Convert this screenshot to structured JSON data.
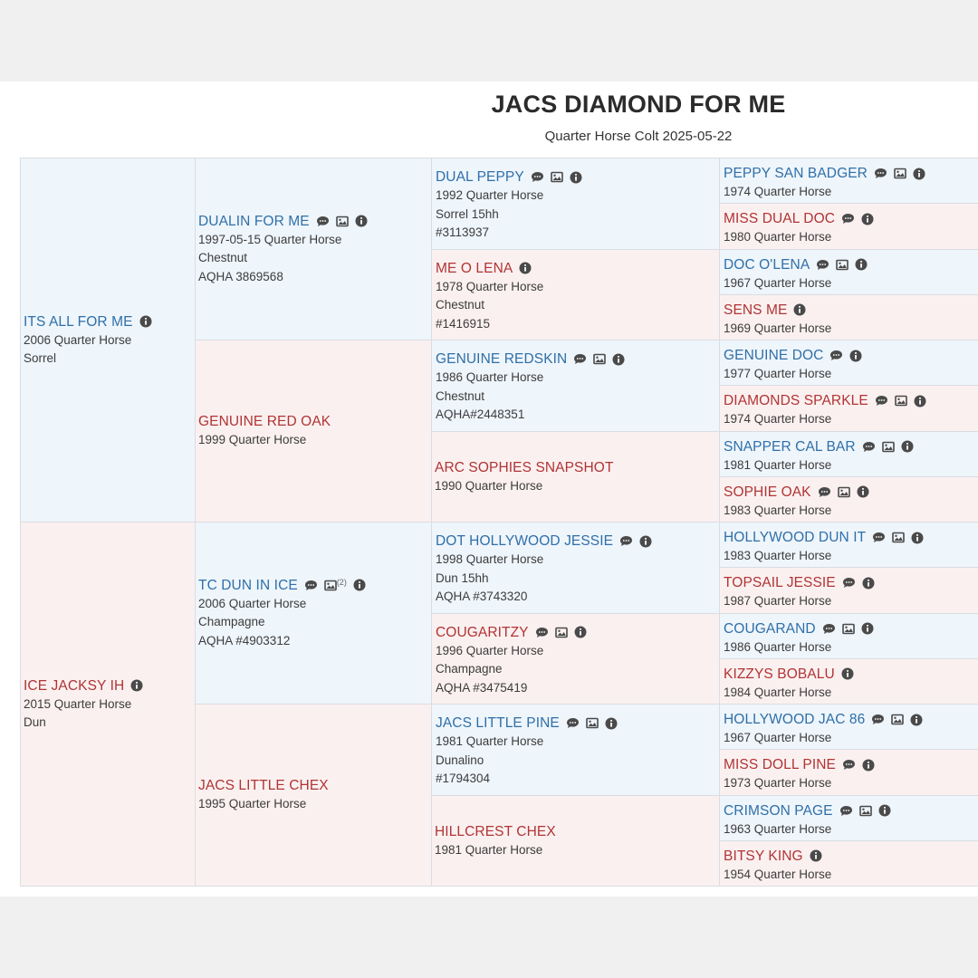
{
  "title": "JACS DIAMOND FOR ME",
  "subtitle": "Quarter Horse Colt 2025-05-22",
  "icons": {
    "comment": "speech-bubble-icon",
    "photo": "photo-icon",
    "info": "info-icon"
  },
  "colors": {
    "sire_link": "#2f6fa8",
    "dam_link": "#b03434",
    "sire_bg": "#eef5fb",
    "dam_bg": "#fbf0f0"
  },
  "pedigree": {
    "gen1": [
      {
        "name": "ITS ALL FOR ME",
        "lines": [
          "2006 Quarter Horse",
          "Sorrel"
        ],
        "icons": [
          "info"
        ]
      },
      {
        "name": "ICE JACKSY IH",
        "lines": [
          "2015 Quarter Horse",
          "Dun"
        ],
        "icons": [
          "info"
        ]
      }
    ],
    "gen2": [
      {
        "name": "DUALIN FOR ME",
        "lines": [
          "1997-05-15 Quarter Horse",
          "Chestnut",
          "AQHA 3869568"
        ],
        "icons": [
          "comment",
          "photo",
          "info"
        ]
      },
      {
        "name": "GENUINE RED OAK",
        "lines": [
          "1999 Quarter Horse"
        ],
        "icons": []
      },
      {
        "name": "TC DUN IN ICE",
        "lines": [
          "2006 Quarter Horse",
          "Champagne",
          "AQHA #4903312"
        ],
        "icons": [
          "comment",
          "photo",
          "info"
        ],
        "photo_count": "(2)"
      },
      {
        "name": "JACS LITTLE CHEX",
        "lines": [
          "1995 Quarter Horse"
        ],
        "icons": []
      }
    ],
    "gen3": [
      {
        "name": "DUAL PEPPY",
        "lines": [
          "1992 Quarter Horse",
          "Sorrel 15hh",
          "#3113937"
        ],
        "icons": [
          "comment",
          "photo",
          "info"
        ]
      },
      {
        "name": "ME O LENA",
        "lines": [
          "1978 Quarter Horse",
          "Chestnut",
          "#1416915"
        ],
        "icons": [
          "info"
        ]
      },
      {
        "name": "GENUINE REDSKIN",
        "lines": [
          "1986 Quarter Horse",
          "Chestnut",
          "AQHA#2448351"
        ],
        "icons": [
          "comment",
          "photo",
          "info"
        ]
      },
      {
        "name": "ARC SOPHIES SNAPSHOT",
        "lines": [
          "1990 Quarter Horse"
        ],
        "icons": []
      },
      {
        "name": "DOT HOLLYWOOD JESSIE",
        "lines": [
          "1998 Quarter Horse",
          "Dun 15hh",
          "AQHA #3743320"
        ],
        "icons": [
          "comment",
          "info"
        ]
      },
      {
        "name": "COUGARITZY",
        "lines": [
          "1996 Quarter Horse",
          "Champagne",
          "AQHA #3475419"
        ],
        "icons": [
          "comment",
          "photo",
          "info"
        ]
      },
      {
        "name": "JACS LITTLE PINE",
        "lines": [
          "1981 Quarter Horse",
          "Dunalino",
          "#1794304"
        ],
        "icons": [
          "comment",
          "photo",
          "info"
        ]
      },
      {
        "name": "HILLCREST CHEX",
        "lines": [
          "1981 Quarter Horse"
        ],
        "icons": []
      }
    ],
    "gen4": [
      {
        "name": "PEPPY SAN BADGER",
        "lines": [
          "1974 Quarter Horse"
        ],
        "icons": [
          "comment",
          "photo",
          "info"
        ]
      },
      {
        "name": "MISS DUAL DOC",
        "lines": [
          "1980 Quarter Horse"
        ],
        "icons": [
          "comment",
          "info"
        ]
      },
      {
        "name": "DOC O'LENA",
        "lines": [
          "1967 Quarter Horse"
        ],
        "icons": [
          "comment",
          "photo",
          "info"
        ]
      },
      {
        "name": "SENS ME",
        "lines": [
          "1969 Quarter Horse"
        ],
        "icons": [
          "info"
        ]
      },
      {
        "name": "GENUINE DOC",
        "lines": [
          "1977 Quarter Horse"
        ],
        "icons": [
          "comment",
          "info"
        ]
      },
      {
        "name": "DIAMONDS SPARKLE",
        "lines": [
          "1974 Quarter Horse"
        ],
        "icons": [
          "comment",
          "photo",
          "info"
        ]
      },
      {
        "name": "SNAPPER CAL BAR",
        "lines": [
          "1981 Quarter Horse"
        ],
        "icons": [
          "comment",
          "photo",
          "info"
        ]
      },
      {
        "name": "SOPHIE OAK",
        "lines": [
          "1983 Quarter Horse"
        ],
        "icons": [
          "comment",
          "photo",
          "info"
        ]
      },
      {
        "name": "HOLLYWOOD DUN IT",
        "lines": [
          "1983 Quarter Horse"
        ],
        "icons": [
          "comment",
          "photo",
          "info"
        ]
      },
      {
        "name": "TOPSAIL JESSIE",
        "lines": [
          "1987 Quarter Horse"
        ],
        "icons": [
          "comment",
          "info"
        ]
      },
      {
        "name": "COUGARAND",
        "lines": [
          "1986 Quarter Horse"
        ],
        "icons": [
          "comment",
          "photo",
          "info"
        ]
      },
      {
        "name": "KIZZYS BOBALU",
        "lines": [
          "1984 Quarter Horse"
        ],
        "icons": [
          "info"
        ]
      },
      {
        "name": "HOLLYWOOD JAC 86",
        "lines": [
          "1967 Quarter Horse"
        ],
        "icons": [
          "comment",
          "photo",
          "info"
        ]
      },
      {
        "name": "MISS DOLL PINE",
        "lines": [
          "1973 Quarter Horse"
        ],
        "icons": [
          "comment",
          "info"
        ]
      },
      {
        "name": "CRIMSON PAGE",
        "lines": [
          "1963 Quarter Horse"
        ],
        "icons": [
          "comment",
          "photo",
          "info"
        ]
      },
      {
        "name": "BITSY KING",
        "lines": [
          "1954 Quarter Horse"
        ],
        "icons": [
          "info"
        ]
      }
    ]
  }
}
